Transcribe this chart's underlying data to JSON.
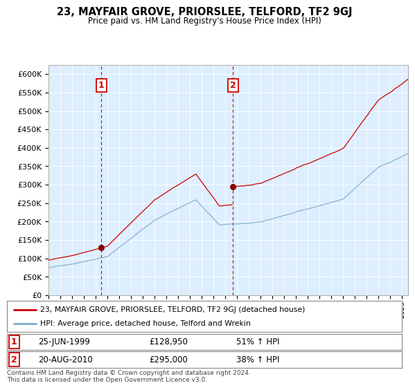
{
  "title": "23, MAYFAIR GROVE, PRIORSLEE, TELFORD, TF2 9GJ",
  "subtitle": "Price paid vs. HM Land Registry's House Price Index (HPI)",
  "ylim": [
    0,
    625000
  ],
  "yticks": [
    0,
    50000,
    100000,
    150000,
    200000,
    250000,
    300000,
    350000,
    400000,
    450000,
    500000,
    550000,
    600000
  ],
  "ytick_labels": [
    "£0",
    "£50K",
    "£100K",
    "£150K",
    "£200K",
    "£250K",
    "£300K",
    "£350K",
    "£400K",
    "£450K",
    "£500K",
    "£550K",
    "£600K"
  ],
  "sale1_date": "25-JUN-1999",
  "sale1_price": 128950,
  "sale1_hpi_pct": "51% ↑ HPI",
  "sale2_date": "20-AUG-2010",
  "sale2_price": 295000,
  "sale2_hpi_pct": "38% ↑ HPI",
  "line1_color": "#cc0000",
  "line2_color": "#7aadcc",
  "marker_color": "#880000",
  "vline_color": "#cc0000",
  "background_color": "#ffffff",
  "plot_bg_color": "#ddeeff",
  "grid_color": "#ffffff",
  "legend_line1": "23, MAYFAIR GROVE, PRIORSLEE, TELFORD, TF2 9GJ (detached house)",
  "legend_line2": "HPI: Average price, detached house, Telford and Wrekin",
  "footnote": "Contains HM Land Registry data © Crown copyright and database right 2024.\nThis data is licensed under the Open Government Licence v3.0.",
  "sale1_x": 1999.49,
  "sale2_x": 2010.64,
  "xmin": 1995.0,
  "xmax": 2025.5
}
